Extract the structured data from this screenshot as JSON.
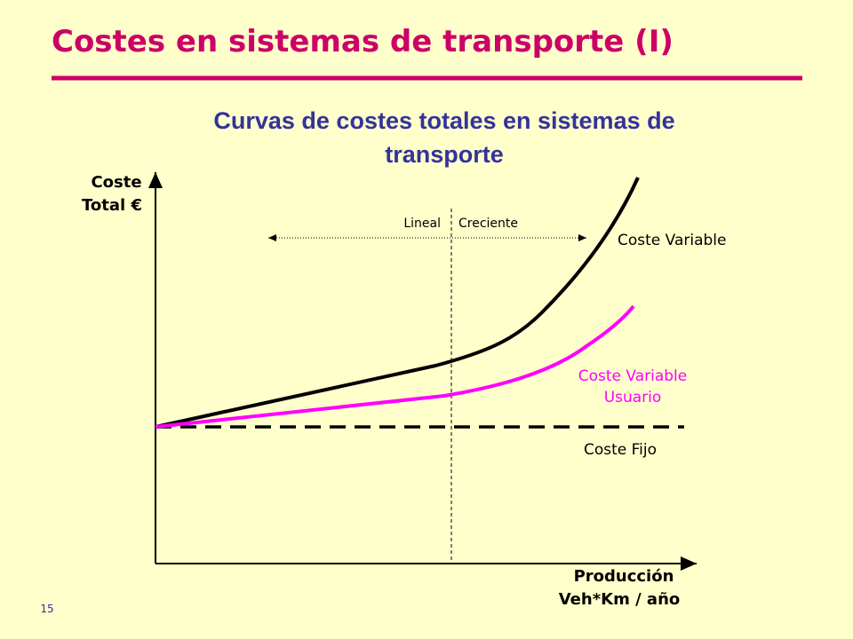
{
  "header": {
    "title": "Costes en sistemas de transporte (I)"
  },
  "diagram": {
    "title": [
      "Curvas de costes totales en sistemas de",
      "transporte"
    ],
    "y_axis_label": [
      "Coste",
      "Total €"
    ],
    "x_axis_label": [
      "Producción",
      "Veh*Km / año"
    ],
    "zones": [
      "Lineal",
      "Creciente"
    ],
    "curves": {
      "variable": [
        "Coste Variable"
      ],
      "user": [
        "Coste Variable",
        "Usuario"
      ],
      "fixed": [
        "Coste Fijo"
      ]
    }
  },
  "footer": {
    "page_number": "15"
  }
}
